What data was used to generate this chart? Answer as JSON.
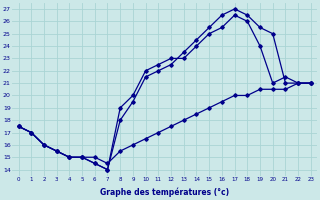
{
  "xlabel": "Graphe des températures (°c)",
  "bg_color": "#cce8e8",
  "line_color": "#00008b",
  "grid_color": "#aad4d4",
  "xlim": [
    -0.5,
    23.5
  ],
  "ylim": [
    13.5,
    27.5
  ],
  "xticks": [
    0,
    1,
    2,
    3,
    4,
    5,
    6,
    7,
    8,
    9,
    10,
    11,
    12,
    13,
    14,
    15,
    16,
    17,
    18,
    19,
    20,
    21,
    22,
    23
  ],
  "yticks": [
    14,
    15,
    16,
    17,
    18,
    19,
    20,
    21,
    22,
    23,
    24,
    25,
    26,
    27
  ],
  "line1_x": [
    0,
    1,
    2,
    3,
    4,
    5,
    6,
    7,
    8,
    9,
    10,
    11,
    12,
    13,
    14,
    15,
    16,
    17,
    18,
    19,
    20,
    21,
    22,
    23
  ],
  "line1_y": [
    17.5,
    17,
    16,
    15.5,
    15,
    15,
    14.5,
    14.0,
    18.0,
    19.5,
    21.5,
    22.0,
    22.5,
    23.5,
    24.5,
    25.5,
    26.5,
    27.0,
    26.5,
    25.5,
    25.0,
    21.0,
    21.0,
    21.0
  ],
  "line2_x": [
    0,
    1,
    2,
    3,
    4,
    5,
    6,
    7,
    8,
    9,
    10,
    11,
    12,
    13,
    14,
    15,
    16,
    17,
    18,
    19,
    20,
    21,
    22,
    23
  ],
  "line2_y": [
    17.5,
    17,
    16,
    15.5,
    15,
    15,
    14.5,
    14.0,
    19.0,
    20.0,
    22.0,
    22.5,
    23.0,
    23.0,
    24.0,
    25.0,
    25.5,
    26.5,
    26.0,
    24.0,
    21.0,
    21.5,
    21.0,
    21.0
  ],
  "line3_x": [
    0,
    1,
    2,
    3,
    4,
    5,
    6,
    7,
    8,
    9,
    10,
    11,
    12,
    13,
    14,
    15,
    16,
    17,
    18,
    19,
    20,
    21,
    22,
    23
  ],
  "line3_y": [
    17.5,
    17,
    16,
    15.5,
    15,
    15,
    15.0,
    14.5,
    15.5,
    16.0,
    16.5,
    17.0,
    17.5,
    18.0,
    18.5,
    19.0,
    19.5,
    20.0,
    20.0,
    20.5,
    20.5,
    20.5,
    21.0,
    21.0
  ]
}
